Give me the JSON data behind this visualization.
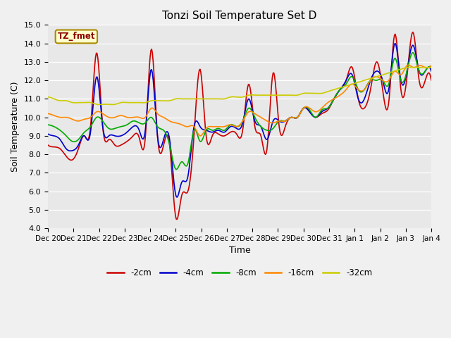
{
  "title": "Tonzi Soil Temperature Set D",
  "xlabel": "Time",
  "ylabel": "Soil Temperature (C)",
  "ylim": [
    4.0,
    15.0
  ],
  "yticks": [
    4.0,
    5.0,
    6.0,
    7.0,
    8.0,
    9.0,
    10.0,
    11.0,
    12.0,
    13.0,
    14.0,
    15.0
  ],
  "colors": {
    "-2cm": "#cc0000",
    "-4cm": "#0000cc",
    "-8cm": "#00aa00",
    "-16cm": "#ff8800",
    "-32cm": "#cccc00"
  },
  "legend_label": "TZ_fmet",
  "x_labels": [
    "Dec 20",
    "Dec 21",
    "Dec 22",
    "Dec 23",
    "Dec 24",
    "Dec 25",
    "Dec 26",
    "Dec 27",
    "Dec 28",
    "Dec 29",
    "Dec 30",
    "Dec 31",
    "Jan 1",
    "Jan 2",
    "Jan 3",
    "Jan 4"
  ],
  "depths": [
    "-2cm",
    "-4cm",
    "-8cm",
    "-16cm",
    "-32cm"
  ],
  "series": {
    "-2cm": [
      8.5,
      8.4,
      8.3,
      7.9,
      7.7,
      8.3,
      9.0,
      9.5,
      13.5,
      9.5,
      8.8,
      8.5,
      8.5,
      8.7,
      9.0,
      8.9,
      8.9,
      13.7,
      9.0,
      8.5,
      8.5,
      4.6,
      5.8,
      6.0,
      9.0,
      12.6,
      9.0,
      9.0,
      9.1,
      9.0,
      9.2,
      9.1,
      9.3,
      11.8,
      9.5,
      9.0,
      8.3,
      12.4,
      9.5,
      9.5,
      10.0,
      10.0,
      10.5,
      10.3,
      10.0,
      10.2,
      10.4,
      11.0,
      11.5,
      12.0,
      12.7,
      11.0,
      10.5,
      11.5,
      13.0,
      11.5,
      10.8,
      14.5,
      11.5,
      12.2,
      14.6,
      12.0,
      12.0,
      12.0
    ],
    "-4cm": [
      9.1,
      9.0,
      8.8,
      8.3,
      8.2,
      8.5,
      9.0,
      9.2,
      12.2,
      9.5,
      9.0,
      9.0,
      9.0,
      9.2,
      9.5,
      9.3,
      9.3,
      12.6,
      9.0,
      8.8,
      8.8,
      5.8,
      6.5,
      6.8,
      9.5,
      9.5,
      9.3,
      9.2,
      9.3,
      9.2,
      9.5,
      9.4,
      9.7,
      11.0,
      9.8,
      9.5,
      8.8,
      9.8,
      9.8,
      9.8,
      10.0,
      10.0,
      10.5,
      10.3,
      10.0,
      10.3,
      10.5,
      11.0,
      11.5,
      12.0,
      12.3,
      11.0,
      11.0,
      12.0,
      12.5,
      12.0,
      11.5,
      14.0,
      12.0,
      12.5,
      13.9,
      12.5,
      12.5,
      12.5
    ],
    "-8cm": [
      9.6,
      9.5,
      9.3,
      9.0,
      8.7,
      8.8,
      9.2,
      9.5,
      10.0,
      9.8,
      9.4,
      9.4,
      9.5,
      9.6,
      9.8,
      9.7,
      9.7,
      10.0,
      9.5,
      9.3,
      8.5,
      7.2,
      7.6,
      7.5,
      9.3,
      8.7,
      9.3,
      9.3,
      9.4,
      9.3,
      9.6,
      9.5,
      9.8,
      10.5,
      10.0,
      9.5,
      9.3,
      9.4,
      9.8,
      9.8,
      10.0,
      10.0,
      10.5,
      10.4,
      10.0,
      10.4,
      10.5,
      11.0,
      11.5,
      11.8,
      12.2,
      11.5,
      11.5,
      12.0,
      12.0,
      12.0,
      11.8,
      13.2,
      12.0,
      12.5,
      13.5,
      12.5,
      12.5,
      12.7
    ],
    "-16cm": [
      10.2,
      10.1,
      10.0,
      10.0,
      9.9,
      9.8,
      9.9,
      10.0,
      10.3,
      10.2,
      10.0,
      10.0,
      10.1,
      10.0,
      10.0,
      10.0,
      10.0,
      10.5,
      10.2,
      10.0,
      9.8,
      9.7,
      9.6,
      9.5,
      9.5,
      9.0,
      9.4,
      9.5,
      9.5,
      9.5,
      9.6,
      9.5,
      9.8,
      10.3,
      10.2,
      10.0,
      9.8,
      9.7,
      9.8,
      9.8,
      10.0,
      10.0,
      10.5,
      10.5,
      10.3,
      10.5,
      10.8,
      11.0,
      11.2,
      11.5,
      11.8,
      11.5,
      11.5,
      12.0,
      12.2,
      12.0,
      12.0,
      12.5,
      12.3,
      12.8,
      12.7,
      12.8,
      12.7,
      12.8
    ],
    "-32cm": [
      11.1,
      11.0,
      10.9,
      10.9,
      10.8,
      10.8,
      10.8,
      10.8,
      10.7,
      10.7,
      10.7,
      10.7,
      10.8,
      10.8,
      10.8,
      10.8,
      10.8,
      10.9,
      10.9,
      10.9,
      10.9,
      11.0,
      11.0,
      11.0,
      11.0,
      11.0,
      11.0,
      11.0,
      11.0,
      11.0,
      11.1,
      11.1,
      11.1,
      11.2,
      11.2,
      11.2,
      11.2,
      11.2,
      11.2,
      11.2,
      11.2,
      11.2,
      11.3,
      11.3,
      11.3,
      11.3,
      11.4,
      11.5,
      11.6,
      11.7,
      11.8,
      11.9,
      12.0,
      12.1,
      12.2,
      12.3,
      12.4,
      12.5,
      12.6,
      12.7,
      12.7,
      12.7,
      12.7,
      12.7
    ]
  }
}
